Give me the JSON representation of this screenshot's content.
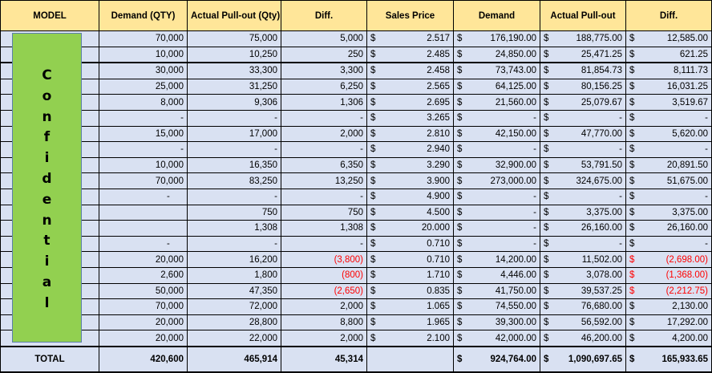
{
  "headers": [
    "MODEL",
    "Demand (QTY)",
    "Actual Pull-out (Qty)",
    "Diff.",
    "Sales Price",
    "Demand",
    "Actual Pull-out",
    "Diff."
  ],
  "currency_symbol": "$",
  "overlay_label": [
    "C",
    "o",
    "n",
    "f",
    "i",
    "d",
    "e",
    "n",
    "t",
    "i",
    "a",
    "l"
  ],
  "rows": [
    {
      "demand_qty": "70,000",
      "pullout_qty": "75,000",
      "diff_qty": "5,000",
      "price": "2.517",
      "demand_amt": "176,190.00",
      "pullout_amt": "188,775.00",
      "diff_amt": "12,585.00"
    },
    {
      "demand_qty": "10,000",
      "pullout_qty": "10,250",
      "diff_qty": "250",
      "price": "2.485",
      "demand_amt": "24,850.00",
      "pullout_amt": "25,471.25",
      "diff_amt": "621.25"
    },
    {
      "demand_qty": "30,000",
      "pullout_qty": "33,300",
      "diff_qty": "3,300",
      "price": "2.458",
      "demand_amt": "73,743.00",
      "pullout_amt": "81,854.73",
      "diff_amt": "8,111.73"
    },
    {
      "demand_qty": "25,000",
      "pullout_qty": "31,250",
      "diff_qty": "6,250",
      "price": "2.565",
      "demand_amt": "64,125.00",
      "pullout_amt": "80,156.25",
      "diff_amt": "16,031.25"
    },
    {
      "demand_qty": "8,000",
      "pullout_qty": "9,306",
      "diff_qty": "1,306",
      "price": "2.695",
      "demand_amt": "21,560.00",
      "pullout_amt": "25,079.67",
      "diff_amt": "3,519.67"
    },
    {
      "demand_qty": "-",
      "pullout_qty": "-",
      "diff_qty": "-",
      "price": "3.265",
      "demand_amt": "-",
      "pullout_amt": "-",
      "diff_amt": "-"
    },
    {
      "demand_qty": "15,000",
      "pullout_qty": "17,000",
      "diff_qty": "2,000",
      "price": "2.810",
      "demand_amt": "42,150.00",
      "pullout_amt": "47,770.00",
      "diff_amt": "5,620.00"
    },
    {
      "demand_qty": "-",
      "pullout_qty": "-",
      "diff_qty": "-",
      "price": "2.940",
      "demand_amt": "-",
      "pullout_amt": "-",
      "diff_amt": "-"
    },
    {
      "demand_qty": "10,000",
      "pullout_qty": "16,350",
      "diff_qty": "6,350",
      "price": "3.290",
      "demand_amt": "32,900.00",
      "pullout_amt": "53,791.50",
      "diff_amt": "20,891.50"
    },
    {
      "demand_qty": "70,000",
      "pullout_qty": "83,250",
      "diff_qty": "13,250",
      "price": "3.900",
      "demand_amt": "273,000.00",
      "pullout_amt": "324,675.00",
      "diff_amt": "51,675.00"
    },
    {
      "demand_qty": "-",
      "pullout_qty": "-",
      "diff_qty": "-",
      "price": "4.900",
      "demand_amt": "-",
      "pullout_amt": "-",
      "diff_amt": "-",
      "left_dash": true
    },
    {
      "demand_qty": "",
      "pullout_qty": "750",
      "diff_qty": "750",
      "price": "4.500",
      "demand_amt": "-",
      "pullout_amt": "3,375.00",
      "diff_amt": "3,375.00"
    },
    {
      "demand_qty": "",
      "pullout_qty": "1,308",
      "diff_qty": "1,308",
      "price": "20.000",
      "demand_amt": "-",
      "pullout_amt": "26,160.00",
      "diff_amt": "26,160.00"
    },
    {
      "demand_qty": "-",
      "pullout_qty": "-",
      "diff_qty": "-",
      "price": "0.710",
      "demand_amt": "-",
      "pullout_amt": "-",
      "diff_amt": "-",
      "left_dash": true
    },
    {
      "demand_qty": "20,000",
      "pullout_qty": "16,200",
      "diff_qty": "(3,800)",
      "price": "0.710",
      "demand_amt": "14,200.00",
      "pullout_amt": "11,502.00",
      "diff_amt": "(2,698.00)",
      "negative": true
    },
    {
      "demand_qty": "2,600",
      "pullout_qty": "1,800",
      "diff_qty": "(800)",
      "price": "1.710",
      "demand_amt": "4,446.00",
      "pullout_amt": "3,078.00",
      "diff_amt": "(1,368.00)",
      "negative": true
    },
    {
      "demand_qty": "50,000",
      "pullout_qty": "47,350",
      "diff_qty": "(2,650)",
      "price": "0.835",
      "demand_amt": "41,750.00",
      "pullout_amt": "39,537.25",
      "diff_amt": "(2,212.75)",
      "negative": true
    },
    {
      "demand_qty": "70,000",
      "pullout_qty": "72,000",
      "diff_qty": "2,000",
      "price": "1.065",
      "demand_amt": "74,550.00",
      "pullout_amt": "76,680.00",
      "diff_amt": "2,130.00"
    },
    {
      "demand_qty": "20,000",
      "pullout_qty": "28,800",
      "diff_qty": "8,800",
      "price": "1.965",
      "demand_amt": "39,300.00",
      "pullout_amt": "56,592.00",
      "diff_amt": "17,292.00"
    },
    {
      "demand_qty": "20,000",
      "pullout_qty": "22,000",
      "diff_qty": "2,000",
      "price": "2.100",
      "demand_amt": "42,000.00",
      "pullout_amt": "46,200.00",
      "diff_amt": "4,200.00"
    }
  ],
  "total": {
    "label": "TOTAL",
    "demand_qty": "420,600",
    "pullout_qty": "465,914",
    "diff_qty": "45,314",
    "demand_amt": "924,764.00",
    "pullout_amt": "1,090,697.65",
    "diff_amt": "165,933.65"
  },
  "colors": {
    "header": "#ffe699",
    "body": "#d9e1f2",
    "overlay": "#92d050",
    "negative": "#ff0000"
  }
}
